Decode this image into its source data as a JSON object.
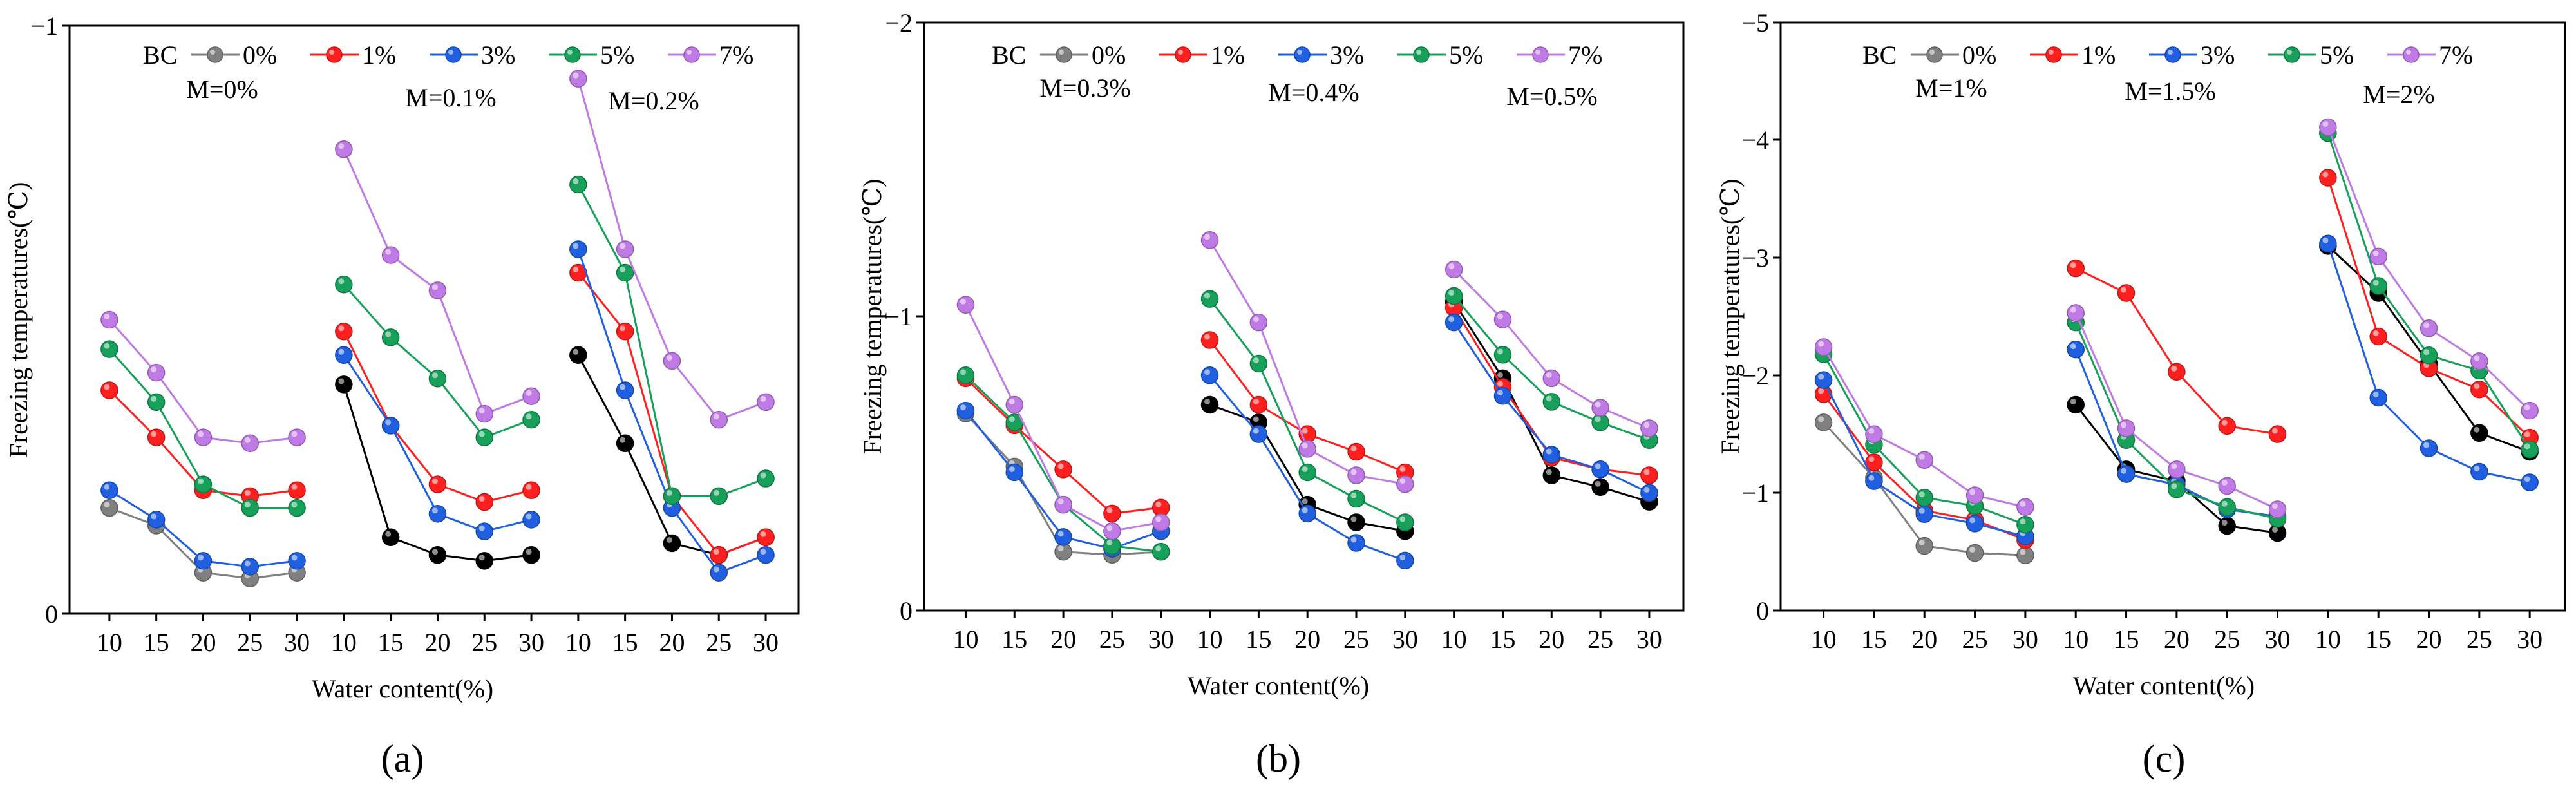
{
  "legend": {
    "title": "BC",
    "entries": [
      "0%",
      "1%",
      "3%",
      "5%",
      "7%"
    ],
    "colors": [
      "#808080",
      "#ff1f1f",
      "#1f5fe0",
      "#16a05a",
      "#c07ae6"
    ]
  },
  "chart_data": [
    {
      "type": "line",
      "panel_label": "(a)",
      "ylabel": "Freezing temperatures(℃)",
      "xlabel": "Water content(%)",
      "ylim": [
        0,
        -1
      ],
      "y_ticks": [
        "−1",
        "0"
      ],
      "x_ticks": [
        "10",
        "15",
        "20",
        "25",
        "30"
      ],
      "legend_title": "BC",
      "groups": [
        {
          "label": "M=0%",
          "x": [
            10,
            15,
            20,
            25,
            30
          ],
          "series": [
            {
              "name": "0%",
              "color": "#808080",
              "values": [
                -0.18,
                -0.15,
                -0.07,
                -0.06,
                -0.07
              ]
            },
            {
              "name": "1%",
              "color": "#ff1f1f",
              "values": [
                -0.38,
                -0.3,
                -0.21,
                -0.2,
                -0.21
              ]
            },
            {
              "name": "3%",
              "color": "#1f5fe0",
              "values": [
                -0.21,
                -0.16,
                -0.09,
                -0.08,
                -0.09
              ]
            },
            {
              "name": "5%",
              "color": "#16a05a",
              "values": [
                -0.45,
                -0.36,
                -0.22,
                -0.18,
                -0.18
              ]
            },
            {
              "name": "7%",
              "color": "#c07ae6",
              "values": [
                -0.5,
                -0.41,
                -0.3,
                -0.29,
                -0.3
              ]
            }
          ]
        },
        {
          "label": "M=0.1%",
          "x": [
            10,
            15,
            20,
            25,
            30
          ],
          "series": [
            {
              "name": "0%",
              "color": "#000000",
              "values": [
                -0.39,
                -0.13,
                -0.1,
                -0.09,
                -0.1
              ]
            },
            {
              "name": "1%",
              "color": "#ff1f1f",
              "values": [
                -0.48,
                -0.32,
                -0.22,
                -0.19,
                -0.21
              ]
            },
            {
              "name": "3%",
              "color": "#1f5fe0",
              "values": [
                -0.44,
                -0.32,
                -0.17,
                -0.14,
                -0.16
              ]
            },
            {
              "name": "5%",
              "color": "#16a05a",
              "values": [
                -0.56,
                -0.47,
                -0.4,
                -0.3,
                -0.33
              ]
            },
            {
              "name": "7%",
              "color": "#c07ae6",
              "values": [
                -0.79,
                -0.61,
                -0.55,
                -0.34,
                -0.37
              ]
            }
          ]
        },
        {
          "label": "M=0.2%",
          "x": [
            10,
            15,
            20,
            25,
            30
          ],
          "series": [
            {
              "name": "0%",
              "color": "#000000",
              "values": [
                -0.44,
                -0.29,
                -0.12,
                -0.1,
                -0.13
              ]
            },
            {
              "name": "1%",
              "color": "#ff1f1f",
              "values": [
                -0.58,
                -0.48,
                -0.2,
                -0.1,
                -0.13
              ]
            },
            {
              "name": "3%",
              "color": "#1f5fe0",
              "values": [
                -0.62,
                -0.38,
                -0.18,
                -0.07,
                -0.1
              ]
            },
            {
              "name": "5%",
              "color": "#16a05a",
              "values": [
                -0.73,
                -0.58,
                -0.2,
                -0.2,
                -0.23
              ]
            },
            {
              "name": "7%",
              "color": "#c07ae6",
              "values": [
                -0.91,
                -0.62,
                -0.43,
                -0.33,
                -0.36
              ]
            }
          ]
        }
      ]
    },
    {
      "type": "line",
      "panel_label": "(b)",
      "ylabel": "Freezing temperatures(℃)",
      "xlabel": "Water content(%)",
      "ylim": [
        0,
        -2
      ],
      "y_ticks": [
        "−2",
        "−1",
        "0"
      ],
      "x_ticks": [
        "10",
        "15",
        "20",
        "25",
        "30"
      ],
      "legend_title": "BC",
      "groups": [
        {
          "label": "M=0.3%",
          "x": [
            10,
            15,
            20,
            25,
            30
          ],
          "series": [
            {
              "name": "0%",
              "color": "#808080",
              "values": [
                -0.67,
                -0.49,
                -0.2,
                -0.19,
                -0.2
              ]
            },
            {
              "name": "1%",
              "color": "#ff1f1f",
              "values": [
                -0.79,
                -0.63,
                -0.48,
                -0.33,
                -0.35
              ]
            },
            {
              "name": "3%",
              "color": "#1f5fe0",
              "values": [
                -0.68,
                -0.47,
                -0.25,
                -0.21,
                -0.27
              ]
            },
            {
              "name": "5%",
              "color": "#16a05a",
              "values": [
                -0.8,
                -0.64,
                -0.36,
                -0.22,
                -0.2
              ]
            },
            {
              "name": "7%",
              "color": "#c07ae6",
              "values": [
                -1.04,
                -0.7,
                -0.36,
                -0.27,
                -0.3
              ]
            }
          ]
        },
        {
          "label": "M=0.4%",
          "x": [
            10,
            15,
            20,
            25,
            30
          ],
          "series": [
            {
              "name": "0%",
              "color": "#000000",
              "values": [
                -0.7,
                -0.64,
                -0.36,
                -0.3,
                -0.27
              ]
            },
            {
              "name": "1%",
              "color": "#ff1f1f",
              "values": [
                -0.92,
                -0.7,
                -0.6,
                -0.54,
                -0.47
              ]
            },
            {
              "name": "3%",
              "color": "#1f5fe0",
              "values": [
                -0.8,
                -0.6,
                -0.33,
                -0.23,
                -0.17
              ]
            },
            {
              "name": "5%",
              "color": "#16a05a",
              "values": [
                -1.06,
                -0.84,
                -0.47,
                -0.38,
                -0.3
              ]
            },
            {
              "name": "7%",
              "color": "#c07ae6",
              "values": [
                -1.26,
                -0.98,
                -0.55,
                -0.46,
                -0.43
              ]
            }
          ]
        },
        {
          "label": "M=0.5%",
          "x": [
            10,
            15,
            20,
            25,
            30
          ],
          "series": [
            {
              "name": "0%",
              "color": "#000000",
              "values": [
                -1.05,
                -0.79,
                -0.46,
                -0.42,
                -0.37
              ]
            },
            {
              "name": "1%",
              "color": "#ff1f1f",
              "values": [
                -1.03,
                -0.76,
                -0.52,
                -0.48,
                -0.46
              ]
            },
            {
              "name": "3%",
              "color": "#1f5fe0",
              "values": [
                -0.98,
                -0.73,
                -0.53,
                -0.48,
                -0.4
              ]
            },
            {
              "name": "5%",
              "color": "#16a05a",
              "values": [
                -1.07,
                -0.87,
                -0.71,
                -0.64,
                -0.58
              ]
            },
            {
              "name": "7%",
              "color": "#c07ae6",
              "values": [
                -1.16,
                -0.99,
                -0.79,
                -0.69,
                -0.62
              ]
            }
          ]
        }
      ]
    },
    {
      "type": "line",
      "panel_label": "(c)",
      "ylabel": "Freezing temperatures(℃)",
      "xlabel": "Water content(%)",
      "ylim": [
        0,
        -5
      ],
      "y_ticks": [
        "−5",
        "−4",
        "−3",
        "−2",
        "−1",
        "0"
      ],
      "x_ticks": [
        "10",
        "15",
        "20",
        "25",
        "30"
      ],
      "legend_title": "BC",
      "groups": [
        {
          "label": "M=1%",
          "x": [
            10,
            15,
            20,
            25,
            30
          ],
          "series": [
            {
              "name": "0%",
              "color": "#808080",
              "values": [
                -1.6,
                -1.13,
                -0.55,
                -0.49,
                -0.47
              ]
            },
            {
              "name": "1%",
              "color": "#ff1f1f",
              "values": [
                -1.84,
                -1.26,
                -0.85,
                -0.77,
                -0.6
              ]
            },
            {
              "name": "3%",
              "color": "#1f5fe0",
              "values": [
                -1.96,
                -1.1,
                -0.82,
                -0.74,
                -0.63
              ]
            },
            {
              "name": "5%",
              "color": "#16a05a",
              "values": [
                -2.18,
                -1.41,
                -0.96,
                -0.89,
                -0.73
              ]
            },
            {
              "name": "7%",
              "color": "#c07ae6",
              "values": [
                -2.24,
                -1.5,
                -1.28,
                -0.98,
                -0.88
              ]
            }
          ]
        },
        {
          "label": "M=1.5%",
          "x": [
            10,
            15,
            20,
            25,
            30
          ],
          "series": [
            {
              "name": "0%",
              "color": "#000000",
              "values": [
                -1.75,
                -1.2,
                -1.1,
                -0.72,
                -0.66
              ]
            },
            {
              "name": "1%",
              "color": "#ff1f1f",
              "values": [
                -2.91,
                -2.7,
                -2.03,
                -1.57,
                -1.5
              ]
            },
            {
              "name": "3%",
              "color": "#1f5fe0",
              "values": [
                -2.22,
                -1.16,
                -1.07,
                -0.86,
                -0.8
              ]
            },
            {
              "name": "5%",
              "color": "#16a05a",
              "values": [
                -2.45,
                -1.45,
                -1.03,
                -0.88,
                -0.78
              ]
            },
            {
              "name": "7%",
              "color": "#c07ae6",
              "values": [
                -2.53,
                -1.55,
                -1.2,
                -1.06,
                -0.86
              ]
            }
          ]
        },
        {
          "label": "M=2%",
          "x": [
            10,
            15,
            20,
            25,
            30
          ],
          "series": [
            {
              "name": "0%",
              "color": "#000000",
              "values": [
                -3.1,
                -2.7,
                -2.1,
                -1.51,
                -1.35
              ]
            },
            {
              "name": "1%",
              "color": "#ff1f1f",
              "values": [
                -3.68,
                -2.33,
                -2.06,
                -1.88,
                -1.47
              ]
            },
            {
              "name": "3%",
              "color": "#1f5fe0",
              "values": [
                -3.12,
                -1.81,
                -1.38,
                -1.18,
                -1.09
              ]
            },
            {
              "name": "5%",
              "color": "#16a05a",
              "values": [
                -4.06,
                -2.76,
                -2.17,
                -2.04,
                -1.37
              ]
            },
            {
              "name": "7%",
              "color": "#c07ae6",
              "values": [
                -4.11,
                -3.01,
                -2.4,
                -2.12,
                -1.7
              ]
            }
          ]
        }
      ]
    }
  ]
}
